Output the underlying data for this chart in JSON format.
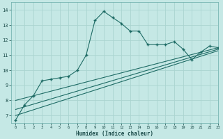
{
  "xlabel": "Humidex (Indice chaleur)",
  "bg_color": "#c5e8e5",
  "grid_color": "#aad4d0",
  "line_color": "#1e6b65",
  "xlim": [
    -0.5,
    23
  ],
  "ylim": [
    6.5,
    14.5
  ],
  "xticks": [
    0,
    1,
    2,
    3,
    4,
    5,
    6,
    7,
    8,
    9,
    10,
    11,
    12,
    13,
    14,
    15,
    16,
    17,
    18,
    19,
    20,
    21,
    22,
    23
  ],
  "yticks": [
    7,
    8,
    9,
    10,
    11,
    12,
    13,
    14
  ],
  "main_x": [
    0,
    1,
    2,
    3,
    4,
    5,
    6,
    7,
    8,
    9,
    10,
    11,
    12,
    13,
    14,
    15,
    16,
    17,
    18,
    19,
    20,
    21,
    22,
    23
  ],
  "main_y": [
    6.7,
    7.7,
    8.3,
    9.3,
    9.4,
    9.5,
    9.6,
    10.0,
    11.0,
    13.3,
    13.9,
    13.5,
    13.1,
    12.6,
    12.6,
    11.7,
    11.7,
    11.7,
    11.9,
    11.4,
    10.7,
    11.2,
    11.6,
    11.5
  ],
  "line2_x": [
    0,
    23
  ],
  "line2_y": [
    8.0,
    11.5
  ],
  "line3_x": [
    0,
    23
  ],
  "line3_y": [
    7.4,
    11.4
  ],
  "line4_x": [
    0,
    23
  ],
  "line4_y": [
    7.0,
    11.3
  ]
}
